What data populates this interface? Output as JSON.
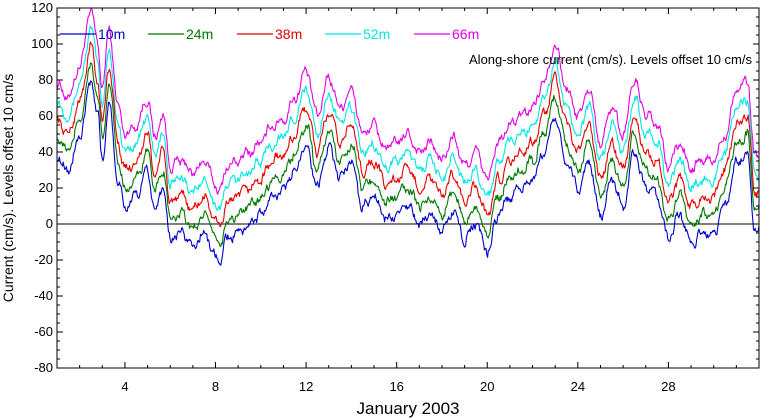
{
  "chart_data": {
    "type": "line",
    "xlabel": "January 2003",
    "ylabel": "Current (cm/s). Levels offset 10 cm/s",
    "annotation": "Along-shore current (cm/s). Levels offset 10 cm/s",
    "xlim": [
      1,
      32
    ],
    "ylim": [
      -80,
      120
    ],
    "x_ticks": [
      4,
      8,
      12,
      16,
      20,
      24,
      28
    ],
    "y_ticks": [
      -80,
      -60,
      -40,
      -20,
      0,
      20,
      40,
      60,
      80,
      100,
      120
    ],
    "zero_line": true,
    "grid": false,
    "legend_position": "top",
    "base_profile": {
      "x": [
        1.0,
        1.5,
        2.0,
        2.5,
        2.8,
        3.0,
        3.3,
        3.7,
        4.0,
        4.5,
        5.0,
        5.3,
        5.7,
        6.0,
        6.5,
        7.0,
        7.5,
        8.0,
        8.2,
        8.5,
        9.0,
        9.5,
        10.0,
        10.5,
        11.0,
        11.5,
        12.0,
        12.5,
        13.0,
        13.5,
        14.0,
        14.5,
        15.0,
        15.5,
        16.0,
        16.5,
        17.0,
        17.5,
        18.0,
        18.5,
        19.0,
        19.5,
        20.0,
        20.5,
        21.0,
        21.5,
        22.0,
        22.5,
        23.0,
        23.5,
        24.0,
        24.5,
        25.0,
        25.5,
        26.0,
        26.5,
        27.0,
        27.5,
        28.0,
        28.5,
        29.0,
        29.5,
        30.0,
        30.5,
        31.0,
        31.5,
        31.8
      ],
      "y": [
        38,
        30,
        48,
        78,
        60,
        35,
        68,
        25,
        10,
        15,
        30,
        8,
        20,
        -8,
        -5,
        -12,
        -5,
        -18,
        -22,
        -8,
        -5,
        0,
        5,
        15,
        18,
        30,
        45,
        20,
        42,
        25,
        35,
        10,
        15,
        2,
        5,
        10,
        0,
        5,
        -5,
        8,
        -8,
        0,
        -15,
        5,
        15,
        20,
        25,
        40,
        60,
        35,
        20,
        35,
        5,
        25,
        10,
        40,
        20,
        15,
        -8,
        5,
        -10,
        -5,
        -5,
        10,
        35,
        40,
        -2
      ]
    },
    "series": [
      {
        "name": "10m",
        "offset": 0,
        "color": "#0000cd"
      },
      {
        "name": "24m",
        "offset": 10,
        "color": "#007800"
      },
      {
        "name": "38m",
        "offset": 20,
        "color": "#e60000"
      },
      {
        "name": "52m",
        "offset": 30,
        "color": "#00e6e6"
      },
      {
        "name": "66m",
        "offset": 40,
        "color": "#e600e6"
      }
    ]
  }
}
